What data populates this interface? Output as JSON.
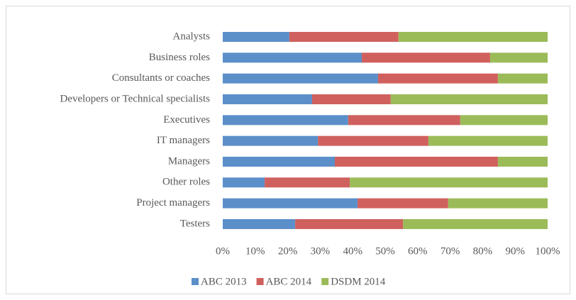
{
  "chart_data": {
    "type": "stacked-bar-horizontal",
    "categories": [
      "Analysts",
      "Business roles",
      "Consultants or coaches",
      "Developers or Technical specialists",
      "Executives",
      "IT managers",
      "Managers",
      "Other roles",
      "Project managers",
      "Testers"
    ],
    "series": [
      {
        "name": "ABC 2013",
        "color": "#5b8fc9",
        "values": [
          20.5,
          42.8,
          47.8,
          27.5,
          38.6,
          29.3,
          34.5,
          12.9,
          41.5,
          22.3
        ]
      },
      {
        "name": "ABC 2014",
        "color": "#d0605e",
        "values": [
          33.6,
          39.5,
          36.9,
          24.2,
          34.5,
          34.0,
          50.2,
          26.2,
          27.9,
          33.2
        ]
      },
      {
        "name": "DSDM 2014",
        "color": "#9bbb59",
        "values": [
          45.9,
          17.7,
          15.3,
          48.3,
          26.9,
          36.7,
          15.3,
          60.9,
          30.6,
          44.5
        ]
      }
    ],
    "xlim": [
      0,
      100
    ],
    "xticks": [
      {
        "value": 0,
        "label": "0%"
      },
      {
        "value": 10,
        "label": "10%"
      },
      {
        "value": 20,
        "label": "20%"
      },
      {
        "value": 30,
        "label": "30%"
      },
      {
        "value": 40,
        "label": "40%"
      },
      {
        "value": 50,
        "label": "50%"
      },
      {
        "value": 60,
        "label": "60%"
      },
      {
        "value": 70,
        "label": "70%"
      },
      {
        "value": 80,
        "label": "80%"
      },
      {
        "value": 90,
        "label": "90%"
      },
      {
        "value": 100,
        "label": "100%"
      }
    ],
    "legend": "bottom"
  }
}
